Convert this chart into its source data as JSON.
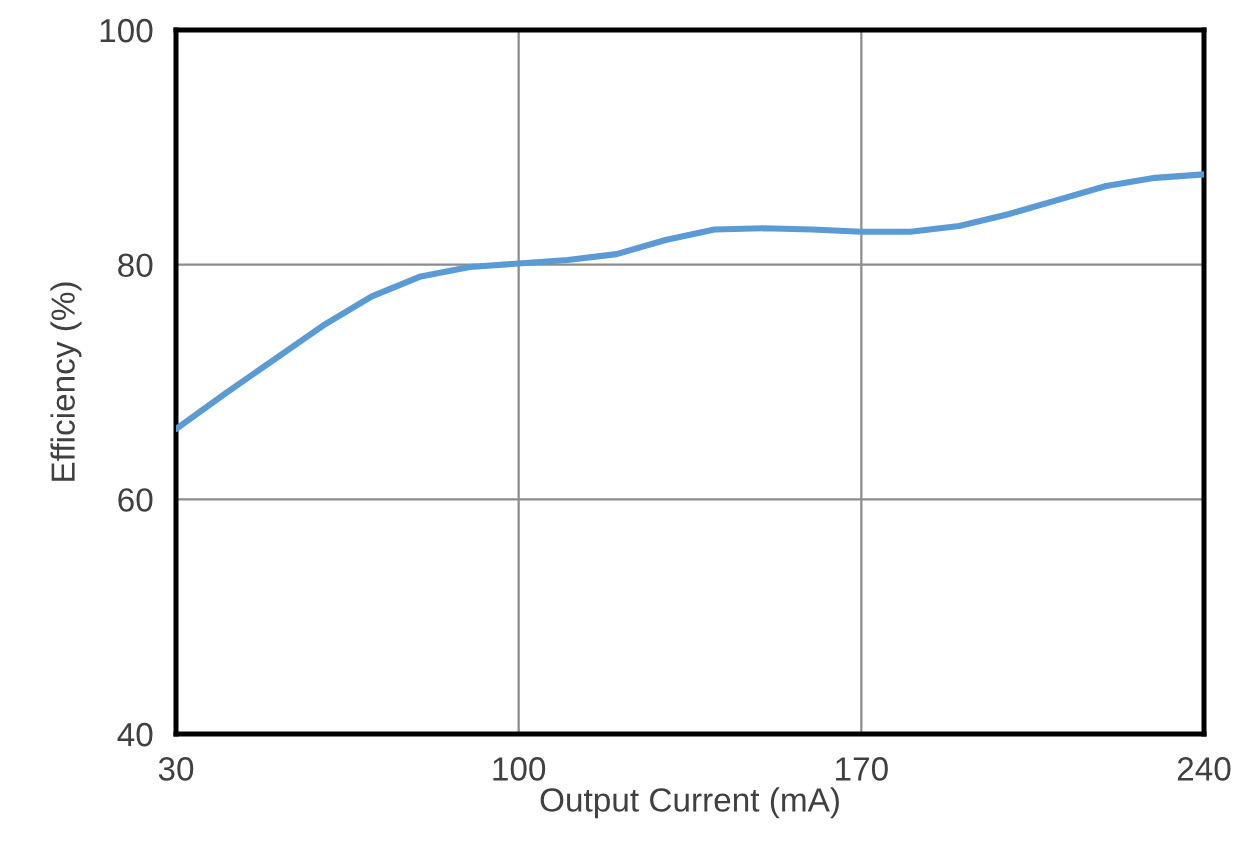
{
  "chart_data": {
    "type": "line",
    "xlabel": "Output Current (mA)",
    "ylabel": "Efficiency (%)",
    "x": [
      30,
      40,
      50,
      60,
      70,
      80,
      90,
      100,
      110,
      120,
      130,
      140,
      150,
      160,
      170,
      180,
      190,
      200,
      210,
      220,
      230,
      240
    ],
    "series": [
      {
        "color": "#5b9bd5",
        "values": [
          66,
          69,
          71.9,
          74.8,
          77.3,
          79,
          79.8,
          80.1,
          80.4,
          80.9,
          82.1,
          83,
          83.1,
          83,
          82.8,
          82.8,
          83.3,
          84.3,
          85.5,
          86.7,
          87.4,
          87.7
        ]
      }
    ],
    "xlim": [
      30,
      240
    ],
    "xticks": [
      30,
      100,
      170,
      240
    ],
    "ylim": [
      40,
      100
    ],
    "yticks": [
      40,
      60,
      80,
      100
    ],
    "grid": true,
    "marker": "none",
    "line_style": "solid"
  }
}
